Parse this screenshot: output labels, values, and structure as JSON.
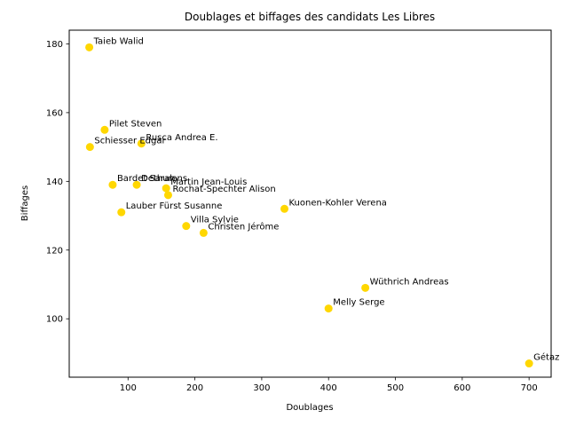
{
  "chart_data": {
    "type": "scatter",
    "title": "Doublages et biffages des candidats Les Libres",
    "xlabel": "Doublages",
    "ylabel": "Biffages",
    "xlim": [
      12,
      733
    ],
    "ylim": [
      83,
      184
    ],
    "xticks": [
      100,
      200,
      300,
      400,
      500,
      600,
      700
    ],
    "yticks": [
      100,
      120,
      140,
      160,
      180
    ],
    "grid": false,
    "point_color": "#FFD700",
    "points": [
      {
        "label": "Taieb Walid",
        "x": 42,
        "y": 179
      },
      {
        "label": "Pilet Steven",
        "x": 65,
        "y": 155
      },
      {
        "label": "Schiesser Edgar",
        "x": 43,
        "y": 150
      },
      {
        "label": "Rusca Andrea E.",
        "x": 120,
        "y": 151
      },
      {
        "label": "Bardet Sarah",
        "x": 77,
        "y": 139
      },
      {
        "label": "Dethurens",
        "x": 113,
        "y": 139
      },
      {
        "label": "Martin Jean-Louis",
        "x": 157,
        "y": 138
      },
      {
        "label": "Rochat-Spechter Alison",
        "x": 160,
        "y": 136
      },
      {
        "label": "Lauber Fürst Susanne",
        "x": 90,
        "y": 131
      },
      {
        "label": "Kuonen-Kohler Verena",
        "x": 334,
        "y": 132
      },
      {
        "label": "Villa Sylvie",
        "x": 187,
        "y": 127
      },
      {
        "label": "Christen Jérôme",
        "x": 213,
        "y": 125
      },
      {
        "label": "Wüthrich Andreas",
        "x": 455,
        "y": 109
      },
      {
        "label": "Melly Serge",
        "x": 400,
        "y": 103
      },
      {
        "label": "Gétaz",
        "x": 700,
        "y": 87
      }
    ]
  }
}
